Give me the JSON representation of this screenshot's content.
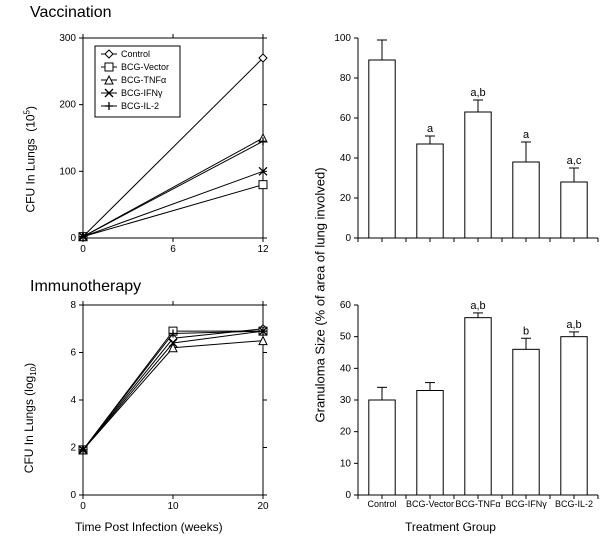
{
  "titles": {
    "vaccination": "Vaccination",
    "immunotherapy": "Immunotherapy"
  },
  "axis_labels": {
    "cfu_lungs_105": "CFU In Lungs  (10 5)",
    "cfu_lungs_log10": "CFU In Lungs (log10)",
    "granuloma_size": "Granuloma Size (% of area of lung involved)",
    "time_weeks": "Time Post Infection (weeks)",
    "treatment_group": "Treatment Group"
  },
  "legend": {
    "items": [
      {
        "label": "Control",
        "marker": "diamond"
      },
      {
        "label": "BCG-Vector",
        "marker": "square"
      },
      {
        "label": "BCG-TNFα",
        "marker": "triangle"
      },
      {
        "label": "BCG-IFNγ",
        "marker": "cross-x"
      },
      {
        "label": "BCG-IL-2",
        "marker": "plus"
      }
    ]
  },
  "top_left": {
    "xlim": [
      0,
      12
    ],
    "xticks": [
      0,
      6,
      12
    ],
    "ylim": [
      0,
      300
    ],
    "yticks": [
      0,
      100,
      200,
      300
    ],
    "series": [
      {
        "name": "Control",
        "marker": "diamond",
        "x": [
          0,
          12
        ],
        "y": [
          2,
          270
        ]
      },
      {
        "name": "BCG-Vector",
        "marker": "square",
        "x": [
          0,
          12
        ],
        "y": [
          2,
          80
        ]
      },
      {
        "name": "BCG-TNFα",
        "marker": "triangle",
        "x": [
          0,
          12
        ],
        "y": [
          2,
          150
        ]
      },
      {
        "name": "BCG-IFNγ",
        "marker": "cross-x",
        "x": [
          0,
          12
        ],
        "y": [
          2,
          100
        ]
      },
      {
        "name": "BCG-IL-2",
        "marker": "plus",
        "x": [
          0,
          12
        ],
        "y": [
          2,
          145
        ]
      }
    ]
  },
  "bottom_left": {
    "xlim": [
      0,
      20
    ],
    "xticks": [
      0,
      10,
      20
    ],
    "ylim": [
      0,
      8
    ],
    "yticks": [
      0,
      2,
      4,
      6,
      8
    ],
    "series": [
      {
        "name": "Control",
        "marker": "diamond",
        "x": [
          0,
          10,
          20
        ],
        "y": [
          1.9,
          6.6,
          7.0
        ]
      },
      {
        "name": "BCG-Vector",
        "marker": "square",
        "x": [
          0,
          10,
          20
        ],
        "y": [
          1.9,
          6.9,
          6.9
        ]
      },
      {
        "name": "BCG-TNFα",
        "marker": "triangle",
        "x": [
          0,
          10,
          20
        ],
        "y": [
          1.9,
          6.2,
          6.5
        ]
      },
      {
        "name": "BCG-IFNγ",
        "marker": "cross-x",
        "x": [
          0,
          10,
          20
        ],
        "y": [
          1.9,
          6.4,
          6.9
        ]
      },
      {
        "name": "BCG-IL-2",
        "marker": "plus",
        "x": [
          0,
          10,
          20
        ],
        "y": [
          1.9,
          6.8,
          6.9
        ]
      }
    ]
  },
  "top_right": {
    "ylim": [
      0,
      100
    ],
    "yticks": [
      0,
      20,
      40,
      60,
      80,
      100
    ],
    "categories": [
      "Control",
      "BCG-Vector",
      "BCG-TNFα",
      "BCG-IFNγ",
      "BCG-IL-2"
    ],
    "values": [
      89,
      47,
      63,
      38,
      28
    ],
    "errors": [
      10,
      4,
      6,
      10,
      7
    ],
    "annotations": [
      "",
      "a",
      "a,b",
      "a",
      "a,c"
    ]
  },
  "bottom_right": {
    "ylim": [
      0,
      60
    ],
    "yticks": [
      0,
      10,
      20,
      30,
      40,
      50,
      60
    ],
    "categories": [
      "Control",
      "BCG-Vector",
      "BCG-TNFα",
      "BCG-IFNγ",
      "BCG-IL-2"
    ],
    "values": [
      30,
      33,
      56,
      46,
      50
    ],
    "errors": [
      4,
      2.5,
      1.5,
      3.5,
      1.5
    ],
    "annotations": [
      "",
      "",
      "a,b",
      "b",
      "a,b"
    ]
  },
  "style": {
    "bg": "#ffffff",
    "stroke": "#000000",
    "bar_fill": "#ffffff",
    "title_fontsize": 16,
    "axis_fontsize": 12,
    "tick_fontsize": 10,
    "legend_fontsize": 9
  }
}
